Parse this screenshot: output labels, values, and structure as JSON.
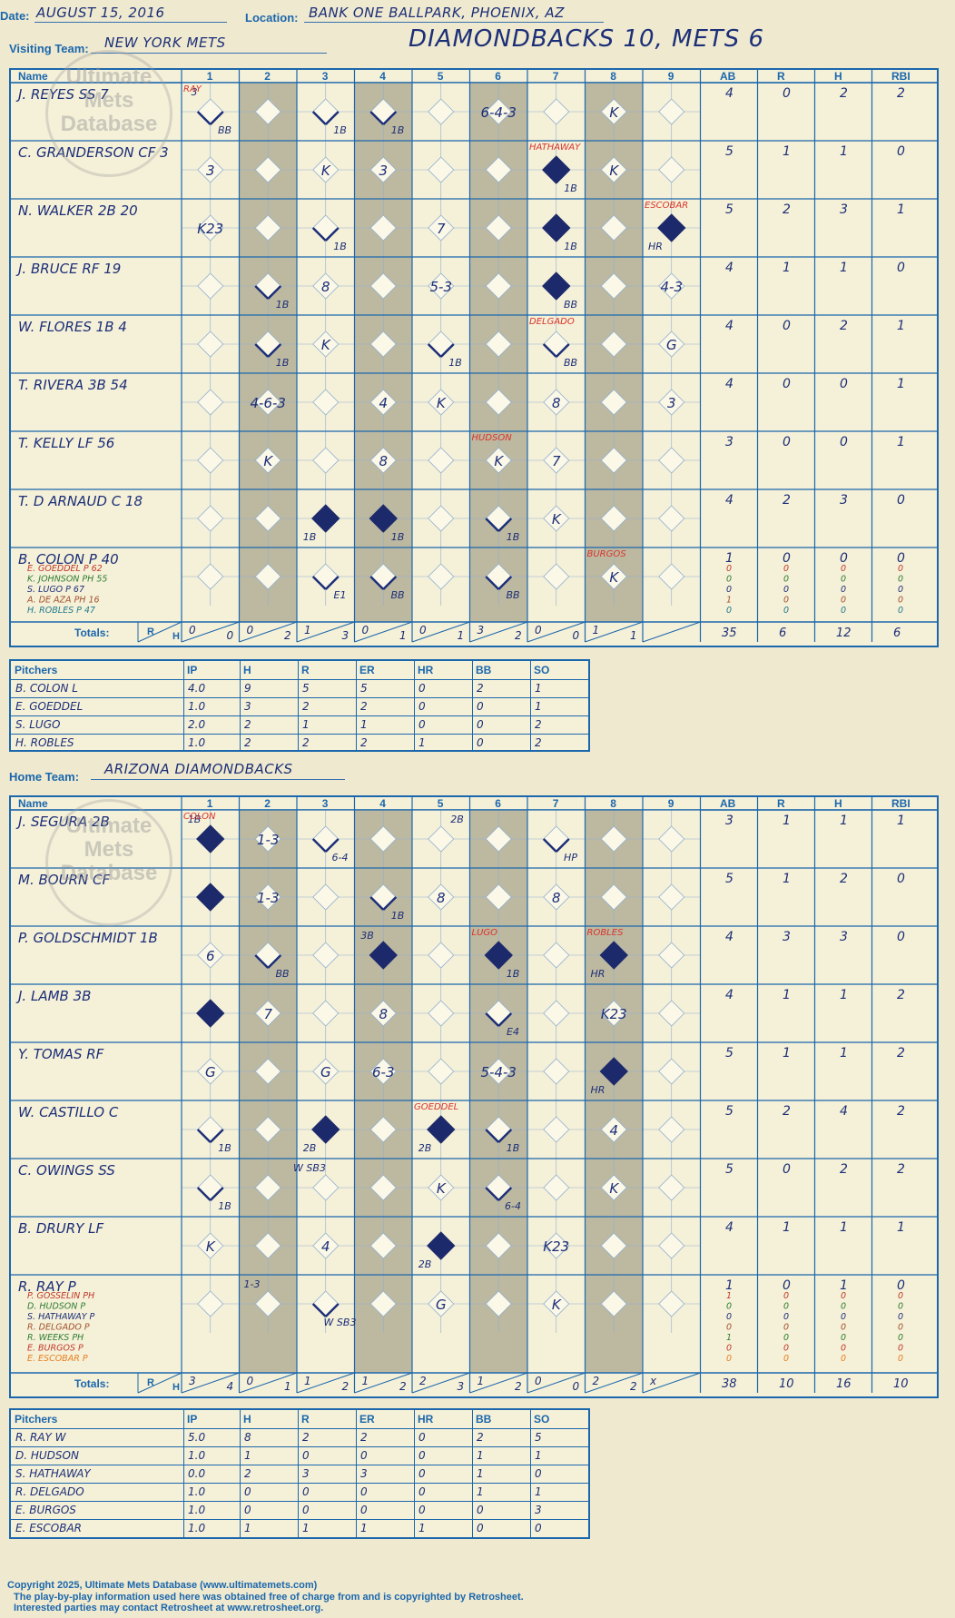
{
  "header": {
    "date_label": "Date:",
    "date": "AUGUST 15, 2016",
    "location_label": "Location:",
    "location": "BANK ONE BALLPARK, PHOENIX, AZ",
    "visiting_label": "Visiting Team:",
    "visiting_team": "NEW YORK METS",
    "home_label": "Home Team:",
    "home_team": "ARIZONA DIAMONDBACKS",
    "headline": "DIAMONDBACKS 10, METS 6"
  },
  "watermark": {
    "line1": "Ultimate",
    "line2": "Mets",
    "line3": "Database",
    "url": "ultimatemets.com"
  },
  "card_headers": {
    "name": "Name",
    "innings": [
      "1",
      "2",
      "3",
      "4",
      "5",
      "6",
      "7",
      "8",
      "9"
    ],
    "stats": [
      "AB",
      "R",
      "H",
      "RBI"
    ],
    "totals": "Totals:",
    "r": "R",
    "h": "H"
  },
  "visitors": {
    "batters": [
      {
        "name": "J. REYES SS  7",
        "stats": [
          "4",
          "0",
          "2",
          "2"
        ]
      },
      {
        "name": "C. GRANDERSON CF  3",
        "stats": [
          "5",
          "1",
          "1",
          "0"
        ]
      },
      {
        "name": "N. WALKER 2B  20",
        "stats": [
          "5",
          "2",
          "3",
          "1"
        ]
      },
      {
        "name": "J. BRUCE RF  19",
        "stats": [
          "4",
          "1",
          "1",
          "0"
        ]
      },
      {
        "name": "W. FLORES 1B  4",
        "stats": [
          "4",
          "0",
          "2",
          "1"
        ]
      },
      {
        "name": "T. RIVERA 3B  54",
        "stats": [
          "4",
          "0",
          "0",
          "1"
        ]
      },
      {
        "name": "T. KELLY LF  56",
        "stats": [
          "3",
          "0",
          "0",
          "1"
        ]
      },
      {
        "name": "T. D ARNAUD C  18",
        "stats": [
          "4",
          "2",
          "3",
          "0"
        ]
      },
      {
        "name": "B. COLON P  40",
        "stats": [
          "1",
          "0",
          "0",
          "0"
        ]
      }
    ],
    "subs": [
      {
        "name": "E. GOEDDEL P  62",
        "color": "#c0392b",
        "stats": [
          "0",
          "0",
          "0",
          "0"
        ]
      },
      {
        "name": "K. JOHNSON PH  55",
        "color": "#2e7d32",
        "stats": [
          "0",
          "0",
          "0",
          "0"
        ]
      },
      {
        "name": "S. LUGO P  67",
        "color": "#1c2f78",
        "stats": [
          "0",
          "0",
          "0",
          "0"
        ]
      },
      {
        "name": "A. DE AZA PH  16",
        "color": "#a0522d",
        "stats": [
          "1",
          "0",
          "0",
          "0"
        ]
      },
      {
        "name": "H. ROBLES P  47",
        "color": "#1f7a8c",
        "stats": [
          "0",
          "0",
          "0",
          "0"
        ]
      }
    ],
    "inning_totals": [
      [
        "0",
        "0"
      ],
      [
        "0",
        "2"
      ],
      [
        "1",
        "3"
      ],
      [
        "0",
        "1"
      ],
      [
        "0",
        "1"
      ],
      [
        "3",
        "2"
      ],
      [
        "0",
        "0"
      ],
      [
        "1",
        "1"
      ],
      [
        "",
        ""
      ]
    ],
    "totals": [
      "35",
      "6",
      "12",
      "6"
    ],
    "plays": [
      {
        "row": 0,
        "inn": 1,
        "text": "BB",
        "corner": "br"
      },
      {
        "row": 0,
        "inn": 1,
        "text": "3",
        "corner": "tl"
      },
      {
        "row": 0,
        "inn": 3,
        "text": "1B",
        "corner": "br"
      },
      {
        "row": 0,
        "inn": 4,
        "text": "1B",
        "corner": "br"
      },
      {
        "row": 0,
        "inn": 6,
        "text": "6-4-3",
        "corner": "c"
      },
      {
        "row": 0,
        "inn": 8,
        "text": "K",
        "corner": "c"
      },
      {
        "row": 1,
        "inn": 1,
        "text": "3",
        "corner": "c"
      },
      {
        "row": 1,
        "inn": 3,
        "text": "K",
        "corner": "c"
      },
      {
        "row": 1,
        "inn": 4,
        "text": "3",
        "corner": "c"
      },
      {
        "row": 1,
        "inn": 7,
        "text": "1B",
        "corner": "br"
      },
      {
        "row": 1,
        "inn": 8,
        "text": "K",
        "corner": "c"
      },
      {
        "row": 2,
        "inn": 1,
        "text": "K23",
        "corner": "c"
      },
      {
        "row": 2,
        "inn": 3,
        "text": "1B",
        "corner": "br"
      },
      {
        "row": 2,
        "inn": 5,
        "text": "7",
        "corner": "c"
      },
      {
        "row": 2,
        "inn": 7,
        "text": "1B",
        "corner": "br"
      },
      {
        "row": 2,
        "inn": 9,
        "text": "HR",
        "corner": "bl"
      },
      {
        "row": 3,
        "inn": 2,
        "text": "1B",
        "corner": "br"
      },
      {
        "row": 3,
        "inn": 3,
        "text": "8",
        "corner": "c"
      },
      {
        "row": 3,
        "inn": 5,
        "text": "5-3",
        "corner": "c"
      },
      {
        "row": 3,
        "inn": 7,
        "text": "BB",
        "corner": "br"
      },
      {
        "row": 3,
        "inn": 9,
        "text": "4-3",
        "corner": "c"
      },
      {
        "row": 4,
        "inn": 2,
        "text": "1B",
        "corner": "br"
      },
      {
        "row": 4,
        "inn": 3,
        "text": "K",
        "corner": "c"
      },
      {
        "row": 4,
        "inn": 5,
        "text": "1B",
        "corner": "br"
      },
      {
        "row": 4,
        "inn": 7,
        "text": "BB",
        "corner": "br"
      },
      {
        "row": 4,
        "inn": 9,
        "text": "G",
        "corner": "c"
      },
      {
        "row": 5,
        "inn": 2,
        "text": "4-6-3",
        "corner": "c"
      },
      {
        "row": 5,
        "inn": 4,
        "text": "4",
        "corner": "c"
      },
      {
        "row": 5,
        "inn": 5,
        "text": "K",
        "corner": "c"
      },
      {
        "row": 5,
        "inn": 7,
        "text": "8",
        "corner": "c"
      },
      {
        "row": 5,
        "inn": 9,
        "text": "3",
        "corner": "c"
      },
      {
        "row": 6,
        "inn": 2,
        "text": "K",
        "corner": "c"
      },
      {
        "row": 6,
        "inn": 4,
        "text": "8",
        "corner": "c"
      },
      {
        "row": 6,
        "inn": 6,
        "text": "K",
        "corner": "c"
      },
      {
        "row": 6,
        "inn": 7,
        "text": "7",
        "corner": "c"
      },
      {
        "row": 7,
        "inn": 3,
        "text": "1B",
        "corner": "bl"
      },
      {
        "row": 7,
        "inn": 4,
        "text": "1B",
        "corner": "br"
      },
      {
        "row": 7,
        "inn": 6,
        "text": "1B",
        "corner": "br"
      },
      {
        "row": 7,
        "inn": 7,
        "text": "K",
        "corner": "c"
      },
      {
        "row": 8,
        "inn": 3,
        "text": "E1",
        "corner": "br"
      },
      {
        "row": 8,
        "inn": 4,
        "text": "BB",
        "corner": "br"
      },
      {
        "row": 8,
        "inn": 6,
        "text": "BB",
        "corner": "br"
      },
      {
        "row": 8,
        "inn": 8,
        "text": "K",
        "corner": "c"
      }
    ],
    "scored": [
      [
        1,
        7
      ],
      [
        2,
        7
      ],
      [
        2,
        9
      ],
      [
        3,
        7
      ],
      [
        7,
        3
      ],
      [
        7,
        4
      ]
    ],
    "notes": [
      {
        "row": 0,
        "inn": 1,
        "text": "RAY",
        "color": "#d9342b"
      },
      {
        "row": 1,
        "inn": 7,
        "text": "HATHAWAY",
        "color": "#d9342b"
      },
      {
        "row": 2,
        "inn": 9,
        "text": "ESCOBAR",
        "color": "#d9342b"
      },
      {
        "row": 4,
        "inn": 7,
        "text": "DELGADO",
        "color": "#d9342b"
      },
      {
        "row": 6,
        "inn": 6,
        "text": "HUDSON",
        "color": "#d9342b"
      },
      {
        "row": 8,
        "inn": 8,
        "text": "BURGOS",
        "color": "#d9342b"
      }
    ],
    "pitchers": [
      {
        "name": "B. COLON  L",
        "ip": "4.0",
        "h": "9",
        "r": "5",
        "er": "5",
        "hr": "0",
        "bb": "2",
        "so": "1"
      },
      {
        "name": "E. GOEDDEL",
        "ip": "1.0",
        "h": "3",
        "r": "2",
        "er": "2",
        "hr": "0",
        "bb": "0",
        "so": "1"
      },
      {
        "name": "S. LUGO",
        "ip": "2.0",
        "h": "2",
        "r": "1",
        "er": "1",
        "hr": "0",
        "bb": "0",
        "so": "2"
      },
      {
        "name": "H. ROBLES",
        "ip": "1.0",
        "h": "2",
        "r": "2",
        "er": "2",
        "hr": "1",
        "bb": "0",
        "so": "2"
      }
    ]
  },
  "home": {
    "batters": [
      {
        "name": "J. SEGURA 2B",
        "stats": [
          "3",
          "1",
          "1",
          "1"
        ]
      },
      {
        "name": "M. BOURN CF",
        "stats": [
          "5",
          "1",
          "2",
          "0"
        ]
      },
      {
        "name": "P. GOLDSCHMIDT 1B",
        "stats": [
          "4",
          "3",
          "3",
          "0"
        ]
      },
      {
        "name": "J. LAMB 3B",
        "stats": [
          "4",
          "1",
          "1",
          "2"
        ]
      },
      {
        "name": "Y. TOMAS RF",
        "stats": [
          "5",
          "1",
          "1",
          "2"
        ]
      },
      {
        "name": "W. CASTILLO C",
        "stats": [
          "5",
          "2",
          "4",
          "2"
        ]
      },
      {
        "name": "C. OWINGS SS",
        "stats": [
          "5",
          "0",
          "2",
          "2"
        ]
      },
      {
        "name": "B. DRURY LF",
        "stats": [
          "4",
          "1",
          "1",
          "1"
        ]
      },
      {
        "name": "R. RAY P",
        "stats": [
          "1",
          "0",
          "1",
          "0"
        ]
      }
    ],
    "subs": [
      {
        "name": "P. GOSSELIN PH",
        "color": "#c0392b",
        "stats": [
          "1",
          "0",
          "0",
          "0"
        ]
      },
      {
        "name": "D. HUDSON P",
        "color": "#2e7d32",
        "stats": [
          "0",
          "0",
          "0",
          "0"
        ]
      },
      {
        "name": "S. HATHAWAY P",
        "color": "#1c2f78",
        "stats": [
          "0",
          "0",
          "0",
          "0"
        ]
      },
      {
        "name": "R. DELGADO P",
        "color": "#a0522d",
        "stats": [
          "0",
          "0",
          "0",
          "0"
        ]
      },
      {
        "name": "R. WEEKS PH",
        "color": "#2e7d32",
        "stats": [
          "1",
          "0",
          "0",
          "0"
        ]
      },
      {
        "name": "E. BURGOS P",
        "color": "#c0392b",
        "stats": [
          "0",
          "0",
          "0",
          "0"
        ]
      },
      {
        "name": "E. ESCOBAR P",
        "color": "#e67e22",
        "stats": [
          "0",
          "0",
          "0",
          "0"
        ]
      }
    ],
    "inning_totals": [
      [
        "3",
        "4"
      ],
      [
        "0",
        "1"
      ],
      [
        "1",
        "2"
      ],
      [
        "1",
        "2"
      ],
      [
        "2",
        "3"
      ],
      [
        "1",
        "2"
      ],
      [
        "0",
        "0"
      ],
      [
        "2",
        "2"
      ],
      [
        "x",
        ""
      ]
    ],
    "totals": [
      "38",
      "10",
      "16",
      "10"
    ],
    "plays": [
      {
        "row": 0,
        "inn": 1,
        "text": "1B",
        "corner": "tl"
      },
      {
        "row": 0,
        "inn": 2,
        "text": "1-3",
        "corner": "c"
      },
      {
        "row": 0,
        "inn": 3,
        "text": "6-4",
        "corner": "br"
      },
      {
        "row": 0,
        "inn": 5,
        "text": "2B",
        "corner": "tr"
      },
      {
        "row": 0,
        "inn": 7,
        "text": "HP",
        "corner": "br"
      },
      {
        "row": 1,
        "inn": 2,
        "text": "1-3",
        "corner": "c"
      },
      {
        "row": 1,
        "inn": 4,
        "text": "1B",
        "corner": "br"
      },
      {
        "row": 1,
        "inn": 5,
        "text": "8",
        "corner": "c"
      },
      {
        "row": 1,
        "inn": 7,
        "text": "8",
        "corner": "c"
      },
      {
        "row": 2,
        "inn": 1,
        "text": "6",
        "corner": "c"
      },
      {
        "row": 2,
        "inn": 2,
        "text": "BB",
        "corner": "br"
      },
      {
        "row": 2,
        "inn": 4,
        "text": "3B",
        "corner": "tl"
      },
      {
        "row": 2,
        "inn": 6,
        "text": "1B",
        "corner": "br"
      },
      {
        "row": 2,
        "inn": 8,
        "text": "HR",
        "corner": "bl"
      },
      {
        "row": 3,
        "inn": 2,
        "text": "7",
        "corner": "c"
      },
      {
        "row": 3,
        "inn": 4,
        "text": "8",
        "corner": "c"
      },
      {
        "row": 3,
        "inn": 6,
        "text": "E4",
        "corner": "br"
      },
      {
        "row": 3,
        "inn": 8,
        "text": "K23",
        "corner": "c"
      },
      {
        "row": 4,
        "inn": 1,
        "text": "G",
        "corner": "c"
      },
      {
        "row": 4,
        "inn": 3,
        "text": "G",
        "corner": "c"
      },
      {
        "row": 4,
        "inn": 4,
        "text": "6-3",
        "corner": "c"
      },
      {
        "row": 4,
        "inn": 6,
        "text": "5-4-3",
        "corner": "c"
      },
      {
        "row": 4,
        "inn": 8,
        "text": "HR",
        "corner": "bl"
      },
      {
        "row": 5,
        "inn": 1,
        "text": "1B",
        "corner": "br"
      },
      {
        "row": 5,
        "inn": 3,
        "text": "2B",
        "corner": "bl"
      },
      {
        "row": 5,
        "inn": 5,
        "text": "2B",
        "corner": "bl"
      },
      {
        "row": 5,
        "inn": 6,
        "text": "1B",
        "corner": "br"
      },
      {
        "row": 5,
        "inn": 8,
        "text": "4",
        "corner": "c"
      },
      {
        "row": 6,
        "inn": 1,
        "text": "1B",
        "corner": "br"
      },
      {
        "row": 6,
        "inn": 3,
        "text": "W SB3",
        "corner": "tl"
      },
      {
        "row": 6,
        "inn": 5,
        "text": "K",
        "corner": "c"
      },
      {
        "row": 6,
        "inn": 6,
        "text": "6-4",
        "corner": "br"
      },
      {
        "row": 6,
        "inn": 8,
        "text": "K",
        "corner": "c"
      },
      {
        "row": 7,
        "inn": 1,
        "text": "K",
        "corner": "c"
      },
      {
        "row": 7,
        "inn": 3,
        "text": "4",
        "corner": "c"
      },
      {
        "row": 7,
        "inn": 5,
        "text": "2B",
        "corner": "bl"
      },
      {
        "row": 7,
        "inn": 7,
        "text": "K23",
        "corner": "c"
      },
      {
        "row": 8,
        "inn": 2,
        "text": "1-3",
        "corner": "tl"
      },
      {
        "row": 8,
        "inn": 3,
        "text": "W SB3",
        "corner": "br"
      },
      {
        "row": 8,
        "inn": 5,
        "text": "G",
        "corner": "c"
      },
      {
        "row": 8,
        "inn": 7,
        "text": "K",
        "corner": "c"
      }
    ],
    "scored": [
      [
        0,
        1
      ],
      [
        1,
        1
      ],
      [
        2,
        4
      ],
      [
        2,
        6
      ],
      [
        2,
        8
      ],
      [
        3,
        1
      ],
      [
        4,
        8
      ],
      [
        5,
        3
      ],
      [
        5,
        5
      ],
      [
        7,
        5
      ]
    ],
    "notes": [
      {
        "row": 0,
        "inn": 1,
        "text": "COLON",
        "color": "#d9342b"
      },
      {
        "row": 2,
        "inn": 6,
        "text": "LUGO",
        "color": "#d9342b"
      },
      {
        "row": 2,
        "inn": 8,
        "text": "ROBLES",
        "color": "#d9342b"
      },
      {
        "row": 5,
        "inn": 5,
        "text": "GOEDDEL",
        "color": "#d9342b"
      }
    ],
    "pitchers": [
      {
        "name": "R. RAY  W",
        "ip": "5.0",
        "h": "8",
        "r": "2",
        "er": "2",
        "hr": "0",
        "bb": "2",
        "so": "5"
      },
      {
        "name": "D. HUDSON",
        "ip": "1.0",
        "h": "1",
        "r": "0",
        "er": "0",
        "hr": "0",
        "bb": "1",
        "so": "1"
      },
      {
        "name": "S. HATHAWAY",
        "ip": "0.0",
        "h": "2",
        "r": "3",
        "er": "3",
        "hr": "0",
        "bb": "1",
        "so": "0"
      },
      {
        "name": "R. DELGADO",
        "ip": "1.0",
        "h": "0",
        "r": "0",
        "er": "0",
        "hr": "0",
        "bb": "1",
        "so": "1"
      },
      {
        "name": "E. BURGOS",
        "ip": "1.0",
        "h": "0",
        "r": "0",
        "er": "0",
        "hr": "0",
        "bb": "0",
        "so": "3"
      },
      {
        "name": "E. ESCOBAR",
        "ip": "1.0",
        "h": "1",
        "r": "1",
        "er": "1",
        "hr": "1",
        "bb": "0",
        "so": "0"
      }
    ]
  },
  "pitcher_headers": [
    "Pitchers",
    "IP",
    "H",
    "R",
    "ER",
    "HR",
    "BB",
    "SO"
  ],
  "footer": {
    "line1": "Copyright 2025, Ultimate Mets Database (www.ultimatemets.com)",
    "line2": "The play-by-play information used here was obtained free of charge from and is copyrighted by Retrosheet.",
    "line3": "Interested parties may contact Retrosheet at www.retrosheet.org."
  }
}
